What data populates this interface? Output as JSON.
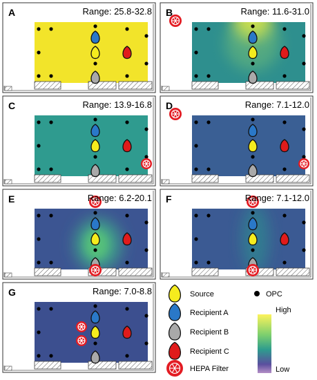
{
  "panels": [
    {
      "letter": "A",
      "range": "Range: 25.8-32.8",
      "bg": "#f2e42a",
      "blob": null,
      "filters": []
    },
    {
      "letter": "B",
      "range": "Range: 11.6-31.0",
      "bg": "#2e8f8e",
      "blob": {
        "color": "#f5ea3a",
        "type": "top"
      },
      "filters": [
        "corner"
      ]
    },
    {
      "letter": "C",
      "range": "Range: 13.9-16.8",
      "bg": "#2f9b8f",
      "blob": null,
      "filters": [
        "edge"
      ]
    },
    {
      "letter": "D",
      "range": "Range: 7.1-12.0",
      "bg": "#3a5f94",
      "blob": null,
      "filters": [
        "corner",
        "edge"
      ]
    },
    {
      "letter": "E",
      "range": "Range: 6.2-20.1",
      "bg": "#3c5592",
      "blob": {
        "color": "#55c07a",
        "type": "center"
      },
      "filters": [
        "top",
        "bottom"
      ]
    },
    {
      "letter": "F",
      "range": "Range: 7.1-12.0",
      "bg": "#3b5a93",
      "blob": {
        "color": "#2f8a90",
        "type": "column"
      },
      "filters": [
        "top",
        "bottom"
      ]
    },
    {
      "letter": "G",
      "range": "Range: 7.0-8.8",
      "bg": "#3c4f8f",
      "blob": null,
      "filters": [
        "left-a",
        "left-b"
      ]
    }
  ],
  "legend": {
    "source": "Source",
    "recipient_a": "Recipient A",
    "recipient_b": "Recipient B",
    "recipient_c": "Recipient C",
    "hepa": "HEPA Filter",
    "opc": "OPC",
    "high": "High",
    "low": "Low"
  },
  "colors": {
    "source": "#f5ec1e",
    "recipient_a": "#2a78c8",
    "recipient_b": "#a9a9a9",
    "recipient_c": "#e01b1b",
    "hepa": "#e31c23"
  }
}
